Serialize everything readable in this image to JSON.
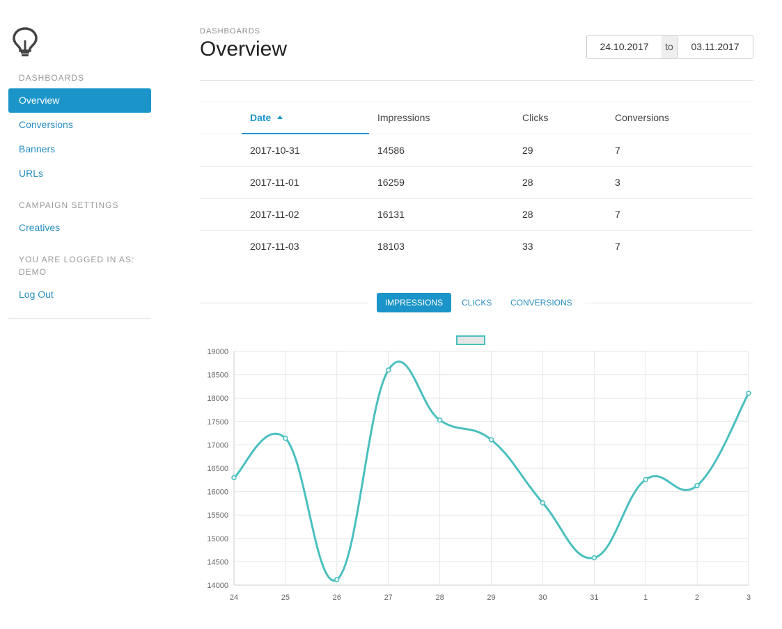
{
  "sidebar": {
    "section_dashboards": "DASHBOARDS",
    "items": [
      {
        "label": "Overview",
        "active": true
      },
      {
        "label": "Conversions"
      },
      {
        "label": "Banners"
      },
      {
        "label": "URLs"
      }
    ],
    "section_campaign": "CAMPAIGN SETTINGS",
    "campaign_items": [
      {
        "label": "Creatives"
      }
    ],
    "logged_in_label": "YOU ARE LOGGED IN AS:",
    "username": "DEMO",
    "logout_label": "Log Out"
  },
  "header": {
    "breadcrumb": "DASHBOARDS",
    "title": "Overview",
    "date_from": "24.10.2017",
    "date_to_label": "to",
    "date_to": "03.11.2017"
  },
  "table": {
    "columns": [
      "Date",
      "Impressions",
      "Clicks",
      "Conversions"
    ],
    "sort_column": "Date",
    "sort_direction": "asc",
    "rows": [
      [
        "2017-10-31",
        "14586",
        "29",
        "7"
      ],
      [
        "2017-11-01",
        "16259",
        "28",
        "3"
      ],
      [
        "2017-11-02",
        "16131",
        "28",
        "7"
      ],
      [
        "2017-11-03",
        "18103",
        "33",
        "7"
      ]
    ]
  },
  "tabs": [
    {
      "label": "IMPRESSIONS",
      "active": true
    },
    {
      "label": "CLICKS"
    },
    {
      "label": "CONVERSIONS"
    }
  ],
  "colors": {
    "accent": "#1b95c9",
    "line": "#4bbfbf"
  },
  "chart_data": {
    "type": "line",
    "title": "",
    "xlabel": "",
    "ylabel": "",
    "categories": [
      "24",
      "25",
      "26",
      "27",
      "28",
      "29",
      "30",
      "31",
      "1",
      "2",
      "3"
    ],
    "series": [
      {
        "values": [
          16300,
          17140,
          14120,
          18600,
          17530,
          17110,
          15760,
          14586,
          16259,
          16131,
          18103
        ]
      }
    ],
    "ylim": [
      14000,
      19000
    ],
    "yticks": [
      14000,
      14500,
      15000,
      15500,
      16000,
      16500,
      17000,
      17500,
      18000,
      18500,
      19000
    ],
    "grid": true,
    "legend": "top-center"
  }
}
